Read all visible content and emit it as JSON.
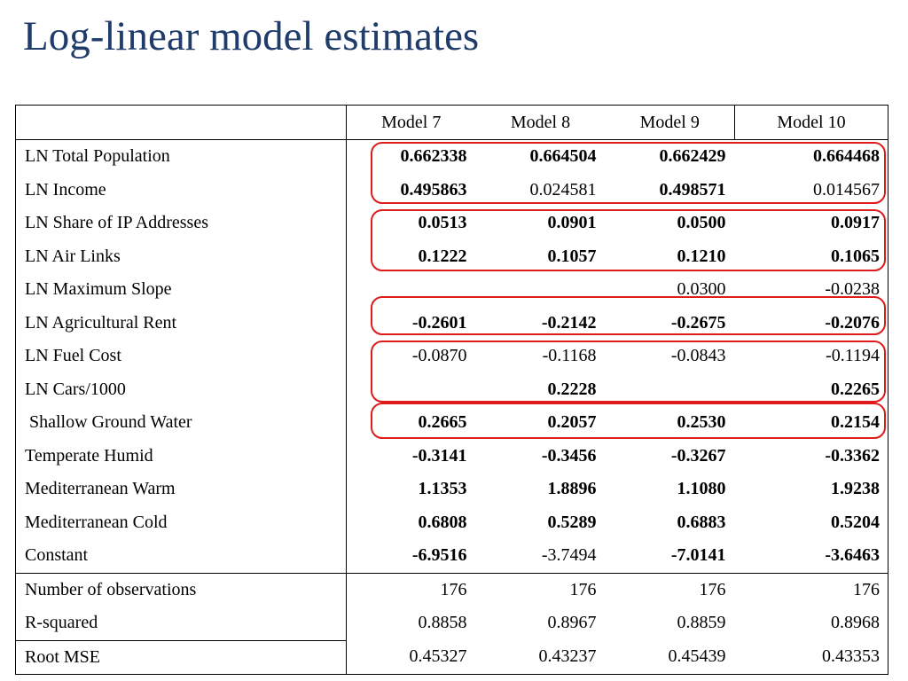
{
  "title": "Log-linear model estimates",
  "table": {
    "columns": [
      "",
      "Model 7",
      "Model 8",
      "Model 9",
      "Model 10"
    ],
    "coefficients": [
      {
        "label": "LN Total Population",
        "values": [
          "0.662338",
          "0.664504",
          "0.662429",
          "0.664468"
        ],
        "bold": [
          true,
          true,
          true,
          true
        ]
      },
      {
        "label": "LN Income",
        "values": [
          "0.495863",
          "0.024581",
          "0.498571",
          "0.014567"
        ],
        "bold": [
          true,
          false,
          true,
          false
        ]
      },
      {
        "label": "LN Share of IP Addresses",
        "values": [
          "0.0513",
          "0.0901",
          "0.0500",
          "0.0917"
        ],
        "bold": [
          true,
          true,
          true,
          true
        ]
      },
      {
        "label": "LN Air Links",
        "values": [
          "0.1222",
          "0.1057",
          "0.1210",
          "0.1065"
        ],
        "bold": [
          true,
          true,
          true,
          true
        ]
      },
      {
        "label": "LN Maximum Slope",
        "values": [
          "",
          "",
          "0.0300",
          "-0.0238"
        ],
        "bold": [
          false,
          false,
          false,
          false
        ]
      },
      {
        "label": "LN Agricultural Rent",
        "values": [
          "-0.2601",
          "-0.2142",
          "-0.2675",
          "-0.2076"
        ],
        "bold": [
          true,
          true,
          true,
          true
        ]
      },
      {
        "label": "LN Fuel Cost",
        "values": [
          "-0.0870",
          "-0.1168",
          "-0.0843",
          "-0.1194"
        ],
        "bold": [
          false,
          false,
          false,
          false
        ]
      },
      {
        "label": "LN Cars/1000",
        "values": [
          "",
          "0.2228",
          "",
          "0.2265"
        ],
        "bold": [
          false,
          true,
          false,
          true
        ]
      },
      {
        "label": "Shallow Ground Water",
        "values": [
          "0.2665",
          "0.2057",
          "0.2530",
          "0.2154"
        ],
        "bold": [
          true,
          true,
          true,
          true
        ]
      },
      {
        "label": "Temperate Humid",
        "values": [
          "-0.3141",
          "-0.3456",
          "-0.3267",
          "-0.3362"
        ],
        "bold": [
          true,
          true,
          true,
          true
        ]
      },
      {
        "label": "Mediterranean Warm",
        "values": [
          "1.1353",
          "1.8896",
          "1.1080",
          "1.9238"
        ],
        "bold": [
          true,
          true,
          true,
          true
        ]
      },
      {
        "label": "Mediterranean Cold",
        "values": [
          "0.6808",
          "0.5289",
          "0.6883",
          "0.5204"
        ],
        "bold": [
          true,
          true,
          true,
          true
        ]
      },
      {
        "label": "Constant",
        "values": [
          "-6.9516",
          "-3.7494",
          "-7.0141",
          "-3.6463"
        ],
        "bold": [
          true,
          false,
          true,
          true
        ]
      }
    ],
    "stats": [
      {
        "label": "Number of observations",
        "values": [
          "176",
          "176",
          "176",
          "176"
        ]
      },
      {
        "label": "R-squared",
        "values": [
          "0.8858",
          "0.8967",
          "0.8859",
          "0.8968"
        ]
      },
      {
        "label": "Root MSE",
        "values": [
          "0.45327",
          "0.43237",
          "0.45439",
          "0.43353"
        ]
      }
    ]
  },
  "colors": {
    "title": "#1f3c6b",
    "highlight": "#e01b1b"
  }
}
